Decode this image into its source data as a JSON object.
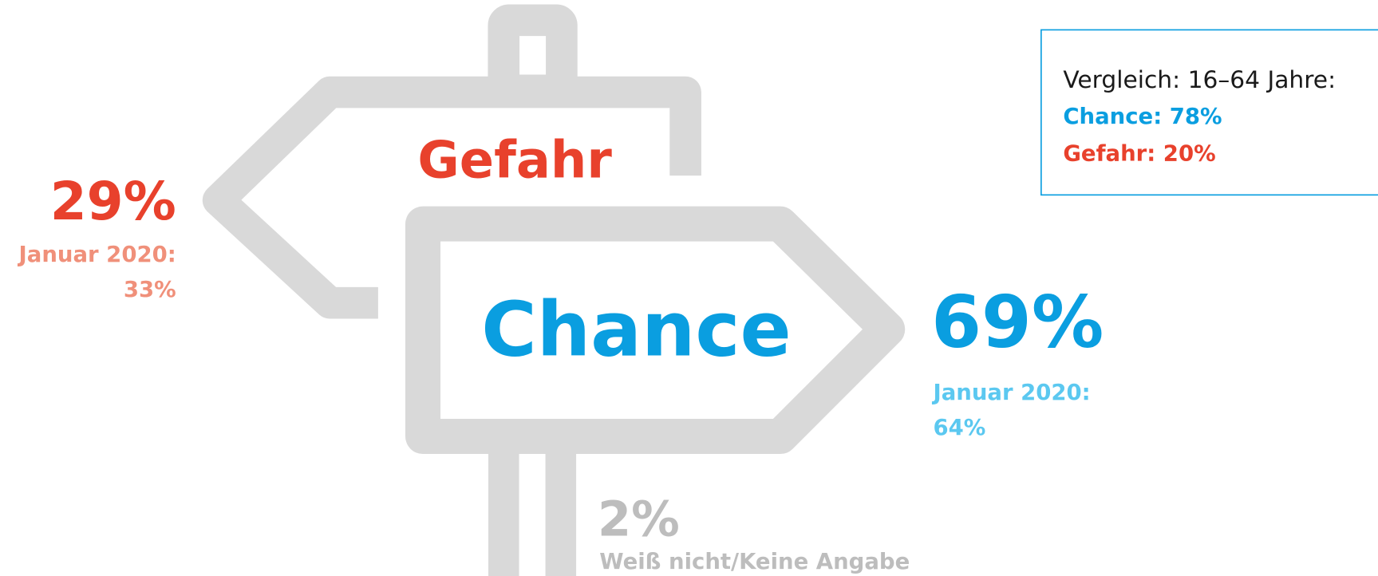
{
  "gefahr": {
    "label": "Gefahr",
    "value": "29%",
    "previous_label": "Januar 2020:",
    "previous_value": "33%"
  },
  "chance": {
    "label": "Chance",
    "value": "69%",
    "previous_label": "Januar 2020:",
    "previous_value": "64%"
  },
  "unknown": {
    "value": "2%",
    "label": "Weiß nicht/Keine Angabe"
  },
  "comparison": {
    "title": "Vergleich: 16–64 Jahre:",
    "chance": "Chance: 78%",
    "gefahr": "Gefahr: 20%"
  }
}
